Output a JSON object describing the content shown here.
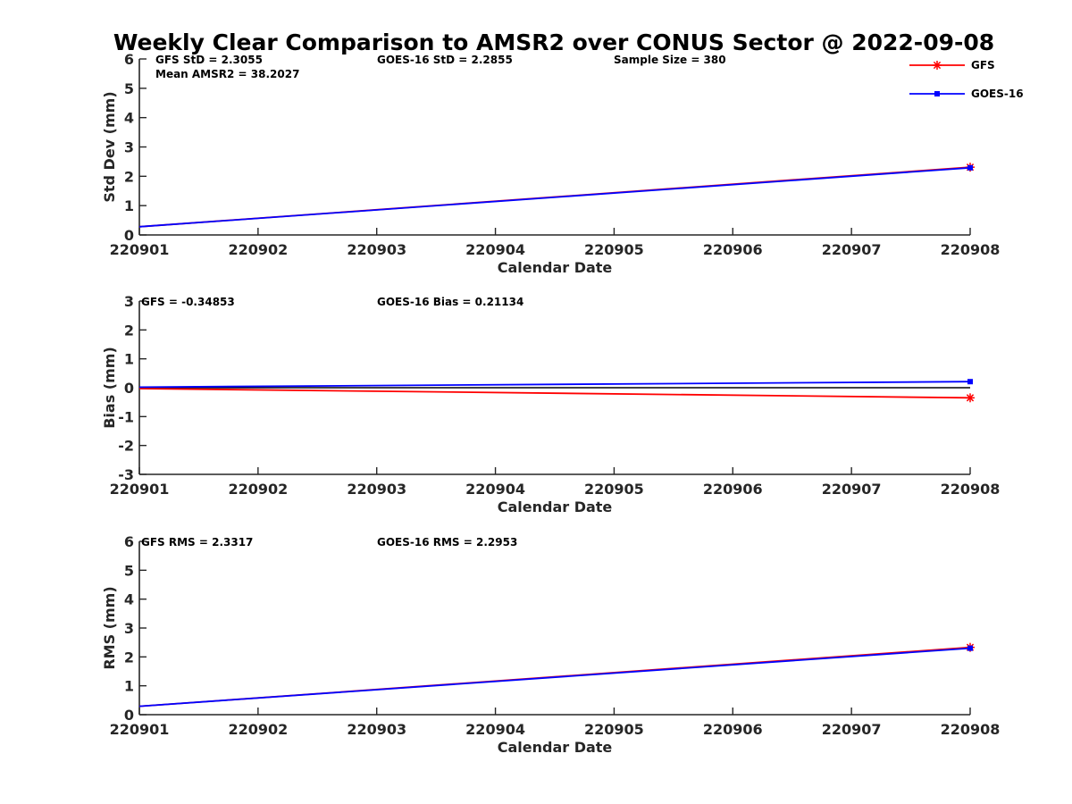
{
  "chart_data": {
    "title": "Weekly Clear Comparison to AMSR2 over CONUS Sector @ 2022-09-08",
    "legend": {
      "placement": "top-right, outside axes",
      "entries": [
        {
          "label": "GFS",
          "color": "#ff0000",
          "marker": "asterisk"
        },
        {
          "label": "GOES-16",
          "color": "#0000ff",
          "marker": "square"
        }
      ]
    },
    "panels": [
      {
        "type": "line",
        "xlabel": "Calendar Date",
        "ylabel": "Std Dev (mm)",
        "x_ticks": [
          "220901",
          "220902",
          "220903",
          "220904",
          "220905",
          "220906",
          "220907",
          "220908"
        ],
        "ylim": [
          0,
          6
        ],
        "y_ticks": [
          "0",
          "1",
          "2",
          "3",
          "4",
          "5",
          "6"
        ],
        "annotations": [
          {
            "text": "GFS StD = 2.3055"
          },
          {
            "text": "Mean AMSR2 = 38.2027"
          },
          {
            "text": "GOES-16 StD = 2.2855"
          },
          {
            "text": "Sample Size = 380"
          }
        ],
        "series": [
          {
            "name": "GFS",
            "color": "#ff0000",
            "marker": "asterisk",
            "x": [
              "220901",
              "220908"
            ],
            "y": [
              0.28,
              2.31
            ]
          },
          {
            "name": "GOES-16",
            "color": "#0000ff",
            "marker": "square",
            "x": [
              "220901",
              "220908"
            ],
            "y": [
              0.28,
              2.29
            ]
          }
        ]
      },
      {
        "type": "line",
        "xlabel": "Calendar Date",
        "ylabel": "Bias (mm)",
        "x_ticks": [
          "220901",
          "220902",
          "220903",
          "220904",
          "220905",
          "220906",
          "220907",
          "220908"
        ],
        "ylim": [
          -3,
          3
        ],
        "y_ticks": [
          "-3",
          "-2",
          "-1",
          "0",
          "1",
          "2",
          "3"
        ],
        "reference_line": 0,
        "annotations": [
          {
            "text": "GFS = -0.34853"
          },
          {
            "text": "GOES-16 Bias  = 0.21134"
          }
        ],
        "series": [
          {
            "name": "GFS",
            "color": "#ff0000",
            "marker": "asterisk",
            "x": [
              "220901",
              "220908"
            ],
            "y": [
              -0.03,
              -0.35
            ]
          },
          {
            "name": "GOES-16",
            "color": "#0000ff",
            "marker": "square",
            "x": [
              "220901",
              "220908"
            ],
            "y": [
              0.02,
              0.21
            ]
          }
        ]
      },
      {
        "type": "line",
        "xlabel": "Calendar Date",
        "ylabel": "RMS (mm)",
        "x_ticks": [
          "220901",
          "220902",
          "220903",
          "220904",
          "220905",
          "220906",
          "220907",
          "220908"
        ],
        "ylim": [
          0,
          6
        ],
        "y_ticks": [
          "0",
          "1",
          "2",
          "3",
          "4",
          "5",
          "6"
        ],
        "annotations": [
          {
            "text": "GFS RMS = 2.3317"
          },
          {
            "text": "GOES-16 RMS = 2.2953"
          }
        ],
        "series": [
          {
            "name": "GFS",
            "color": "#ff0000",
            "marker": "asterisk",
            "x": [
              "220901",
              "220908"
            ],
            "y": [
              0.29,
              2.33
            ]
          },
          {
            "name": "GOES-16",
            "color": "#0000ff",
            "marker": "square",
            "x": [
              "220901",
              "220908"
            ],
            "y": [
              0.29,
              2.3
            ]
          }
        ]
      }
    ]
  }
}
